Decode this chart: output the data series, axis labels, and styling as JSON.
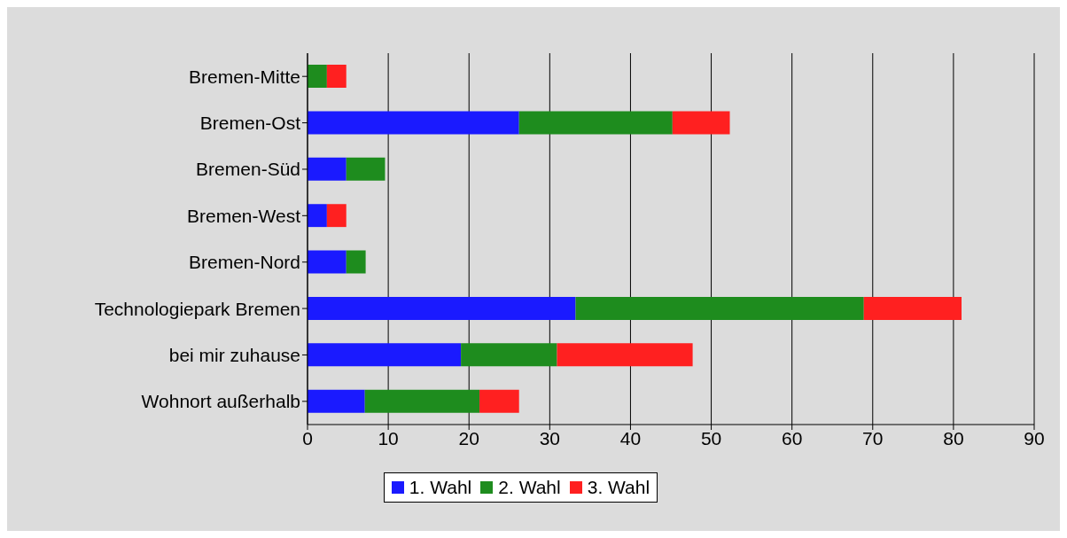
{
  "chart_data": {
    "type": "bar",
    "orientation": "horizontal",
    "stacked": true,
    "categories": [
      "Bremen-Mitte",
      "Bremen-Ost",
      "Bremen-Süd",
      "Bremen-West",
      "Bremen-Nord",
      "Technologiepark Bremen",
      "bei mir zuhause",
      "Wohnort außerhalb"
    ],
    "series": [
      {
        "name": "1. Wahl",
        "color": "#1a1aff",
        "values": [
          0,
          26.2,
          4.8,
          2.4,
          4.8,
          33.2,
          19.0,
          7.1
        ]
      },
      {
        "name": "2. Wahl",
        "color": "#1e8c1e",
        "values": [
          2.4,
          19.0,
          4.8,
          0,
          2.4,
          35.7,
          11.9,
          14.2
        ]
      },
      {
        "name": "3. Wahl",
        "color": "#ff2020",
        "values": [
          2.4,
          7.1,
          0,
          2.4,
          0,
          12.1,
          16.8,
          4.9
        ]
      }
    ],
    "xlim": [
      0,
      90
    ],
    "xticks": [
      0,
      10,
      20,
      30,
      40,
      50,
      60,
      70,
      80,
      90
    ],
    "grid": "x",
    "legend": "bottom"
  }
}
